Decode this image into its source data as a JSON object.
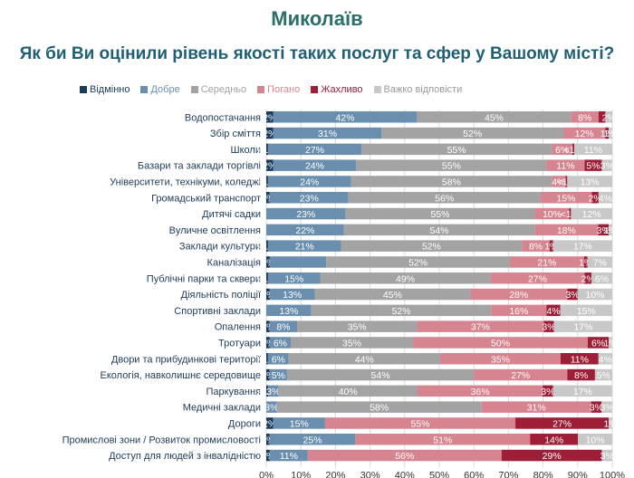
{
  "title": "Миколаїв",
  "subtitle": "Як би Ви оцінили рівень якості таких послуг та сфер у Вашому місті?",
  "colors": {
    "title": "#2a6f6a",
    "subtitle": "#1f5f74",
    "series": [
      "#1b3a5c",
      "#6a8fae",
      "#a3a3a3",
      "#d6848f",
      "#9e1d37",
      "#c8c8c8"
    ]
  },
  "chart_data": {
    "type": "bar",
    "orientation": "horizontal",
    "stacked": true,
    "categories": [
      "Водопостачання",
      "Збір сміття",
      "Школи",
      "Базари та заклади торгівлі",
      "Університети, технікуми, коледжі",
      "Громадський транспорт",
      "Дитячі садки",
      "Вуличне освітлення",
      "Заклади культури",
      "Каналізація",
      "Публічні парки та сквери",
      "Діяльність поліції",
      "Спортивні заклади",
      "Опалення",
      "Тротуари",
      "Двори та прибудинкові території",
      "Екологія, навколишнє середовище",
      "Паркування",
      "Медичні заклади",
      "Дороги",
      "Промислові зони / Розвиток промисловості",
      "Доступ для людей з інвалідністю"
    ],
    "series": [
      {
        "name": "Відмінно",
        "values": [
          2,
          2,
          0.5,
          2,
          0.5,
          1,
          0,
          0,
          0.5,
          1,
          0.5,
          1,
          0,
          1,
          1,
          0.5,
          1,
          0.5,
          0,
          2,
          1,
          1
        ],
        "labels": [
          "2%",
          "2%",
          "<1%",
          "2%",
          "<1%",
          "1%",
          "",
          "",
          "<1%",
          "1%",
          "<1%",
          "1%",
          "",
          "1%",
          "1%",
          "<1%",
          "1%",
          "<1%",
          "",
          "2%",
          "1%",
          "1%"
        ]
      },
      {
        "name": "Добре",
        "values": [
          42,
          31,
          27,
          24,
          24,
          23,
          23,
          22,
          21,
          16,
          15,
          13,
          13,
          8,
          6,
          6,
          5,
          3,
          3,
          15,
          25,
          11
        ],
        "labels": [
          "42%",
          "31%",
          "27%",
          "24%",
          "24%",
          "23%",
          "23%",
          "22%",
          "21%",
          "",
          "15%",
          "13%",
          "13%",
          "8%",
          "6%",
          "6%",
          "5%",
          "3%",
          "3%",
          "15%",
          "25%",
          "11%"
        ]
      },
      {
        "name": "Середньо",
        "values": [
          45,
          52,
          55,
          55,
          58,
          56,
          55,
          54,
          52,
          52,
          49,
          45,
          52,
          35,
          35,
          44,
          54,
          40,
          58,
          0,
          0,
          0
        ],
        "labels": [
          "45%",
          "52%",
          "55%",
          "55%",
          "58%",
          "56%",
          "55%",
          "54%",
          "52%",
          "52%",
          "49%",
          "45%",
          "52%",
          "35%",
          "35%",
          "44%",
          "54%",
          "40%",
          "58%",
          "",
          "",
          ""
        ]
      },
      {
        "name": "Погано",
        "values": [
          8,
          12,
          6,
          11,
          4,
          15,
          10,
          18,
          8,
          21,
          27,
          28,
          16,
          37,
          50,
          35,
          27,
          36,
          31,
          55,
          51,
          56
        ],
        "labels": [
          "8%",
          "12%",
          "6%",
          "11%",
          "4%",
          "15%",
          "10%",
          "18%",
          "8%",
          "21%",
          "27%",
          "28%",
          "16%",
          "37%",
          "50%",
          "35%",
          "27%",
          "36%",
          "31%",
          "55%",
          "51%",
          "56%"
        ]
      },
      {
        "name": "Жахливо",
        "values": [
          2,
          1,
          0.5,
          5,
          0.5,
          2,
          0.5,
          3,
          1,
          1,
          2,
          3,
          4,
          3,
          6,
          11,
          8,
          3,
          3,
          27,
          14,
          29
        ],
        "labels": [
          "",
          "1%",
          "<1%",
          "5%",
          "<1%",
          "2%",
          "<1%",
          "3%",
          "1%",
          "1%",
          "2%",
          "3%",
          "4%",
          "3%",
          "6%",
          "11%",
          "8%",
          "3%",
          "3%",
          "27%",
          "14%",
          "29%"
        ]
      },
      {
        "name": "Важко відповісти",
        "values": [
          2,
          1,
          11,
          3,
          13,
          4,
          12,
          1,
          17,
          7,
          6,
          10,
          15,
          17,
          1,
          4,
          5,
          17,
          3,
          1,
          10,
          3
        ],
        "labels": [
          "2%",
          "1%",
          "11%",
          "3%",
          "13%",
          "4%",
          "12%",
          "1%",
          "17%",
          "7%",
          "6%",
          "10%",
          "15%",
          "17%",
          "1%",
          "4%",
          "5%",
          "17%",
          "3%",
          "1%",
          "10%",
          "3%"
        ]
      }
    ],
    "xticks": [
      "0%",
      "10%",
      "20%",
      "30%",
      "40%",
      "50%",
      "60%",
      "70%",
      "80%",
      "90%",
      "100%"
    ],
    "xlim": [
      0,
      100
    ],
    "legend_position": "top"
  }
}
